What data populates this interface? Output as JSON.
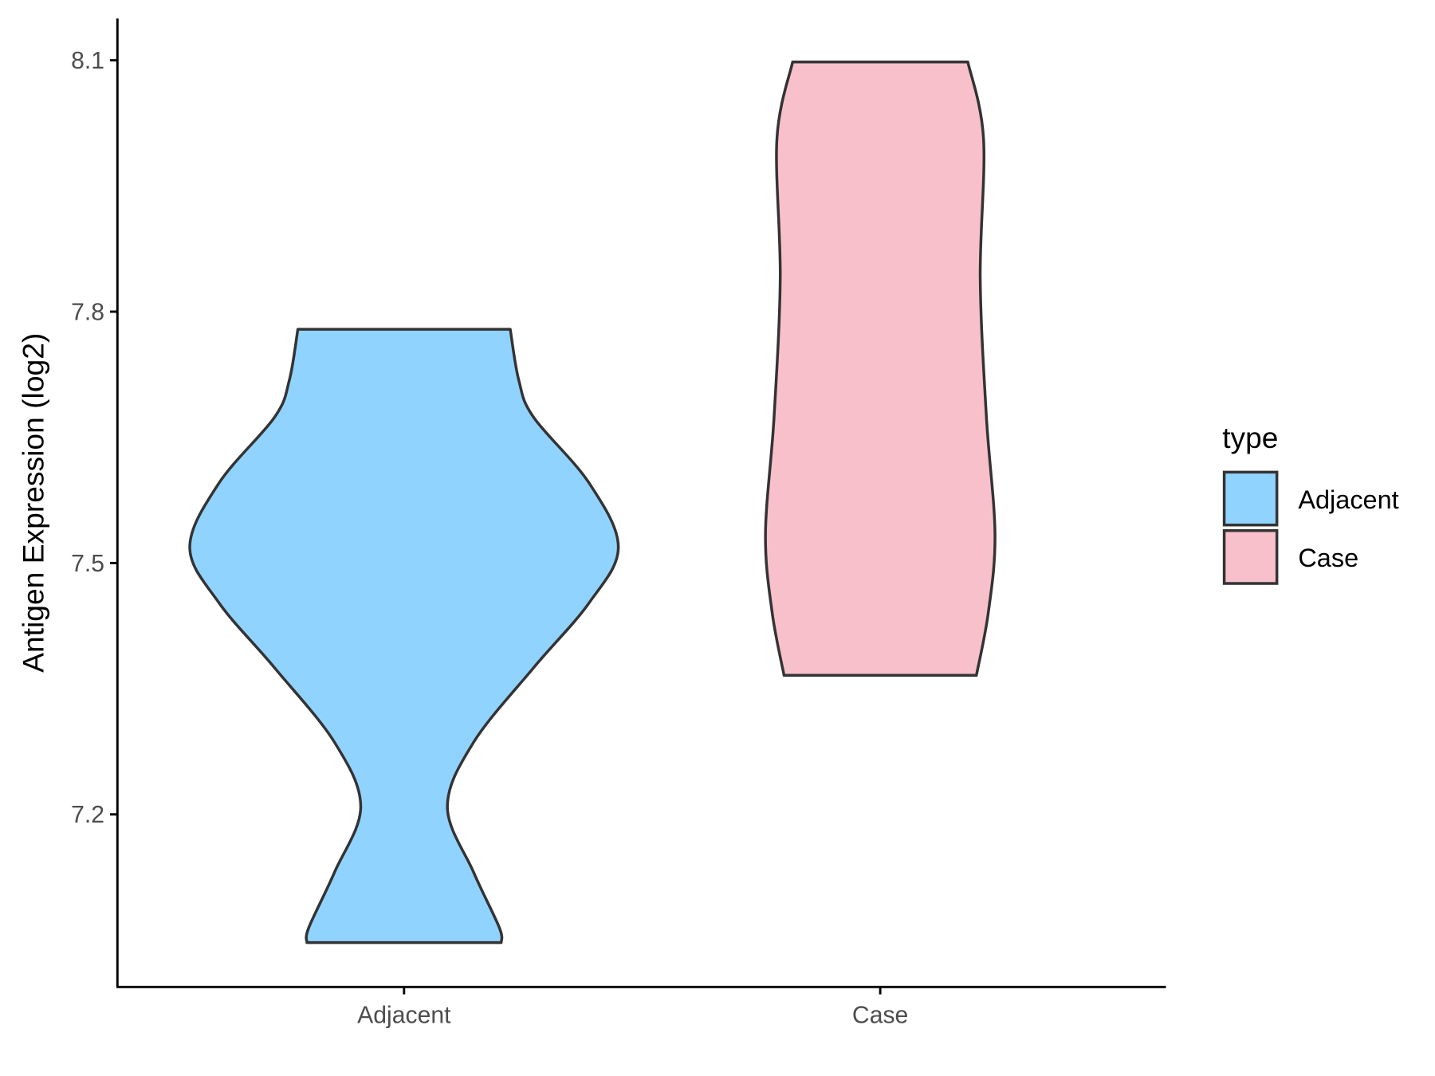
{
  "chart_data": {
    "type": "violin",
    "title": "",
    "xlabel": "",
    "ylabel": "Antigen Expression (log2)",
    "categories": [
      "Adjacent",
      "Case"
    ],
    "yticks": [
      7.2,
      7.5,
      7.8,
      8.1
    ],
    "ytick_labels": [
      "7.2",
      "7.5",
      "7.8",
      "8.1"
    ],
    "ylim": [
      7.0,
      8.15
    ],
    "grid": false,
    "legend": {
      "title": "type",
      "placement": "right",
      "entries": [
        {
          "label": "Adjacent",
          "color": "#91D3FF"
        },
        {
          "label": "Case",
          "color": "#F8C0CB"
        }
      ]
    },
    "series": [
      {
        "category": "Adjacent",
        "color": "#91D3FF",
        "min": 7.047,
        "max": 7.779,
        "profile": [
          [
            7.779,
            0.223
          ],
          [
            7.718,
            0.241
          ],
          [
            7.674,
            0.272
          ],
          [
            7.596,
            0.388
          ],
          [
            7.519,
            0.45
          ],
          [
            7.452,
            0.388
          ],
          [
            7.375,
            0.272
          ],
          [
            7.286,
            0.146
          ],
          [
            7.209,
            0.091
          ],
          [
            7.131,
            0.146
          ],
          [
            7.065,
            0.2
          ],
          [
            7.047,
            0.204
          ]
        ]
      },
      {
        "category": "Case",
        "color": "#F8C0CB",
        "min": 7.366,
        "max": 8.098,
        "profile": [
          [
            8.098,
            0.184
          ],
          [
            8.006,
            0.217
          ],
          [
            7.84,
            0.21
          ],
          [
            7.674,
            0.223
          ],
          [
            7.535,
            0.241
          ],
          [
            7.441,
            0.227
          ],
          [
            7.366,
            0.202
          ]
        ]
      }
    ],
    "outline_color": "#333333"
  }
}
